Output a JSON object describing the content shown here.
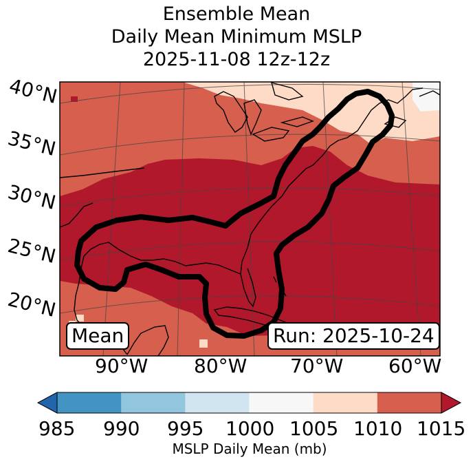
{
  "title": {
    "line1": "Ensemble Mean",
    "line2": "Daily Mean Minimum MSLP",
    "line3": "2025-11-08 12z-12z"
  },
  "map": {
    "lat_labels": [
      "40°N",
      "35°N",
      "30°N",
      "25°N",
      "20°N"
    ],
    "lon_labels": [
      "90°W",
      "80°W",
      "70°W",
      "60°W"
    ],
    "badge_left": "Mean",
    "badge_right": "Run: 2025-10-24",
    "colors": {
      "c1005_1010": "#fddbc7",
      "c1010_1015": "#d6604d",
      "c1015_plus": "#b2182b",
      "contour": "#000000",
      "land_lines": "#000000"
    }
  },
  "colorbar": {
    "ticks": [
      "985",
      "990",
      "995",
      "1000",
      "1005",
      "1010",
      "1015"
    ],
    "colors": [
      "#2166ac",
      "#4393c3",
      "#92c5de",
      "#d1e5f0",
      "#f7f7f7",
      "#fddbc7",
      "#d6604d",
      "#b2182b"
    ],
    "label": "MSLP Daily Mean (mb)"
  }
}
